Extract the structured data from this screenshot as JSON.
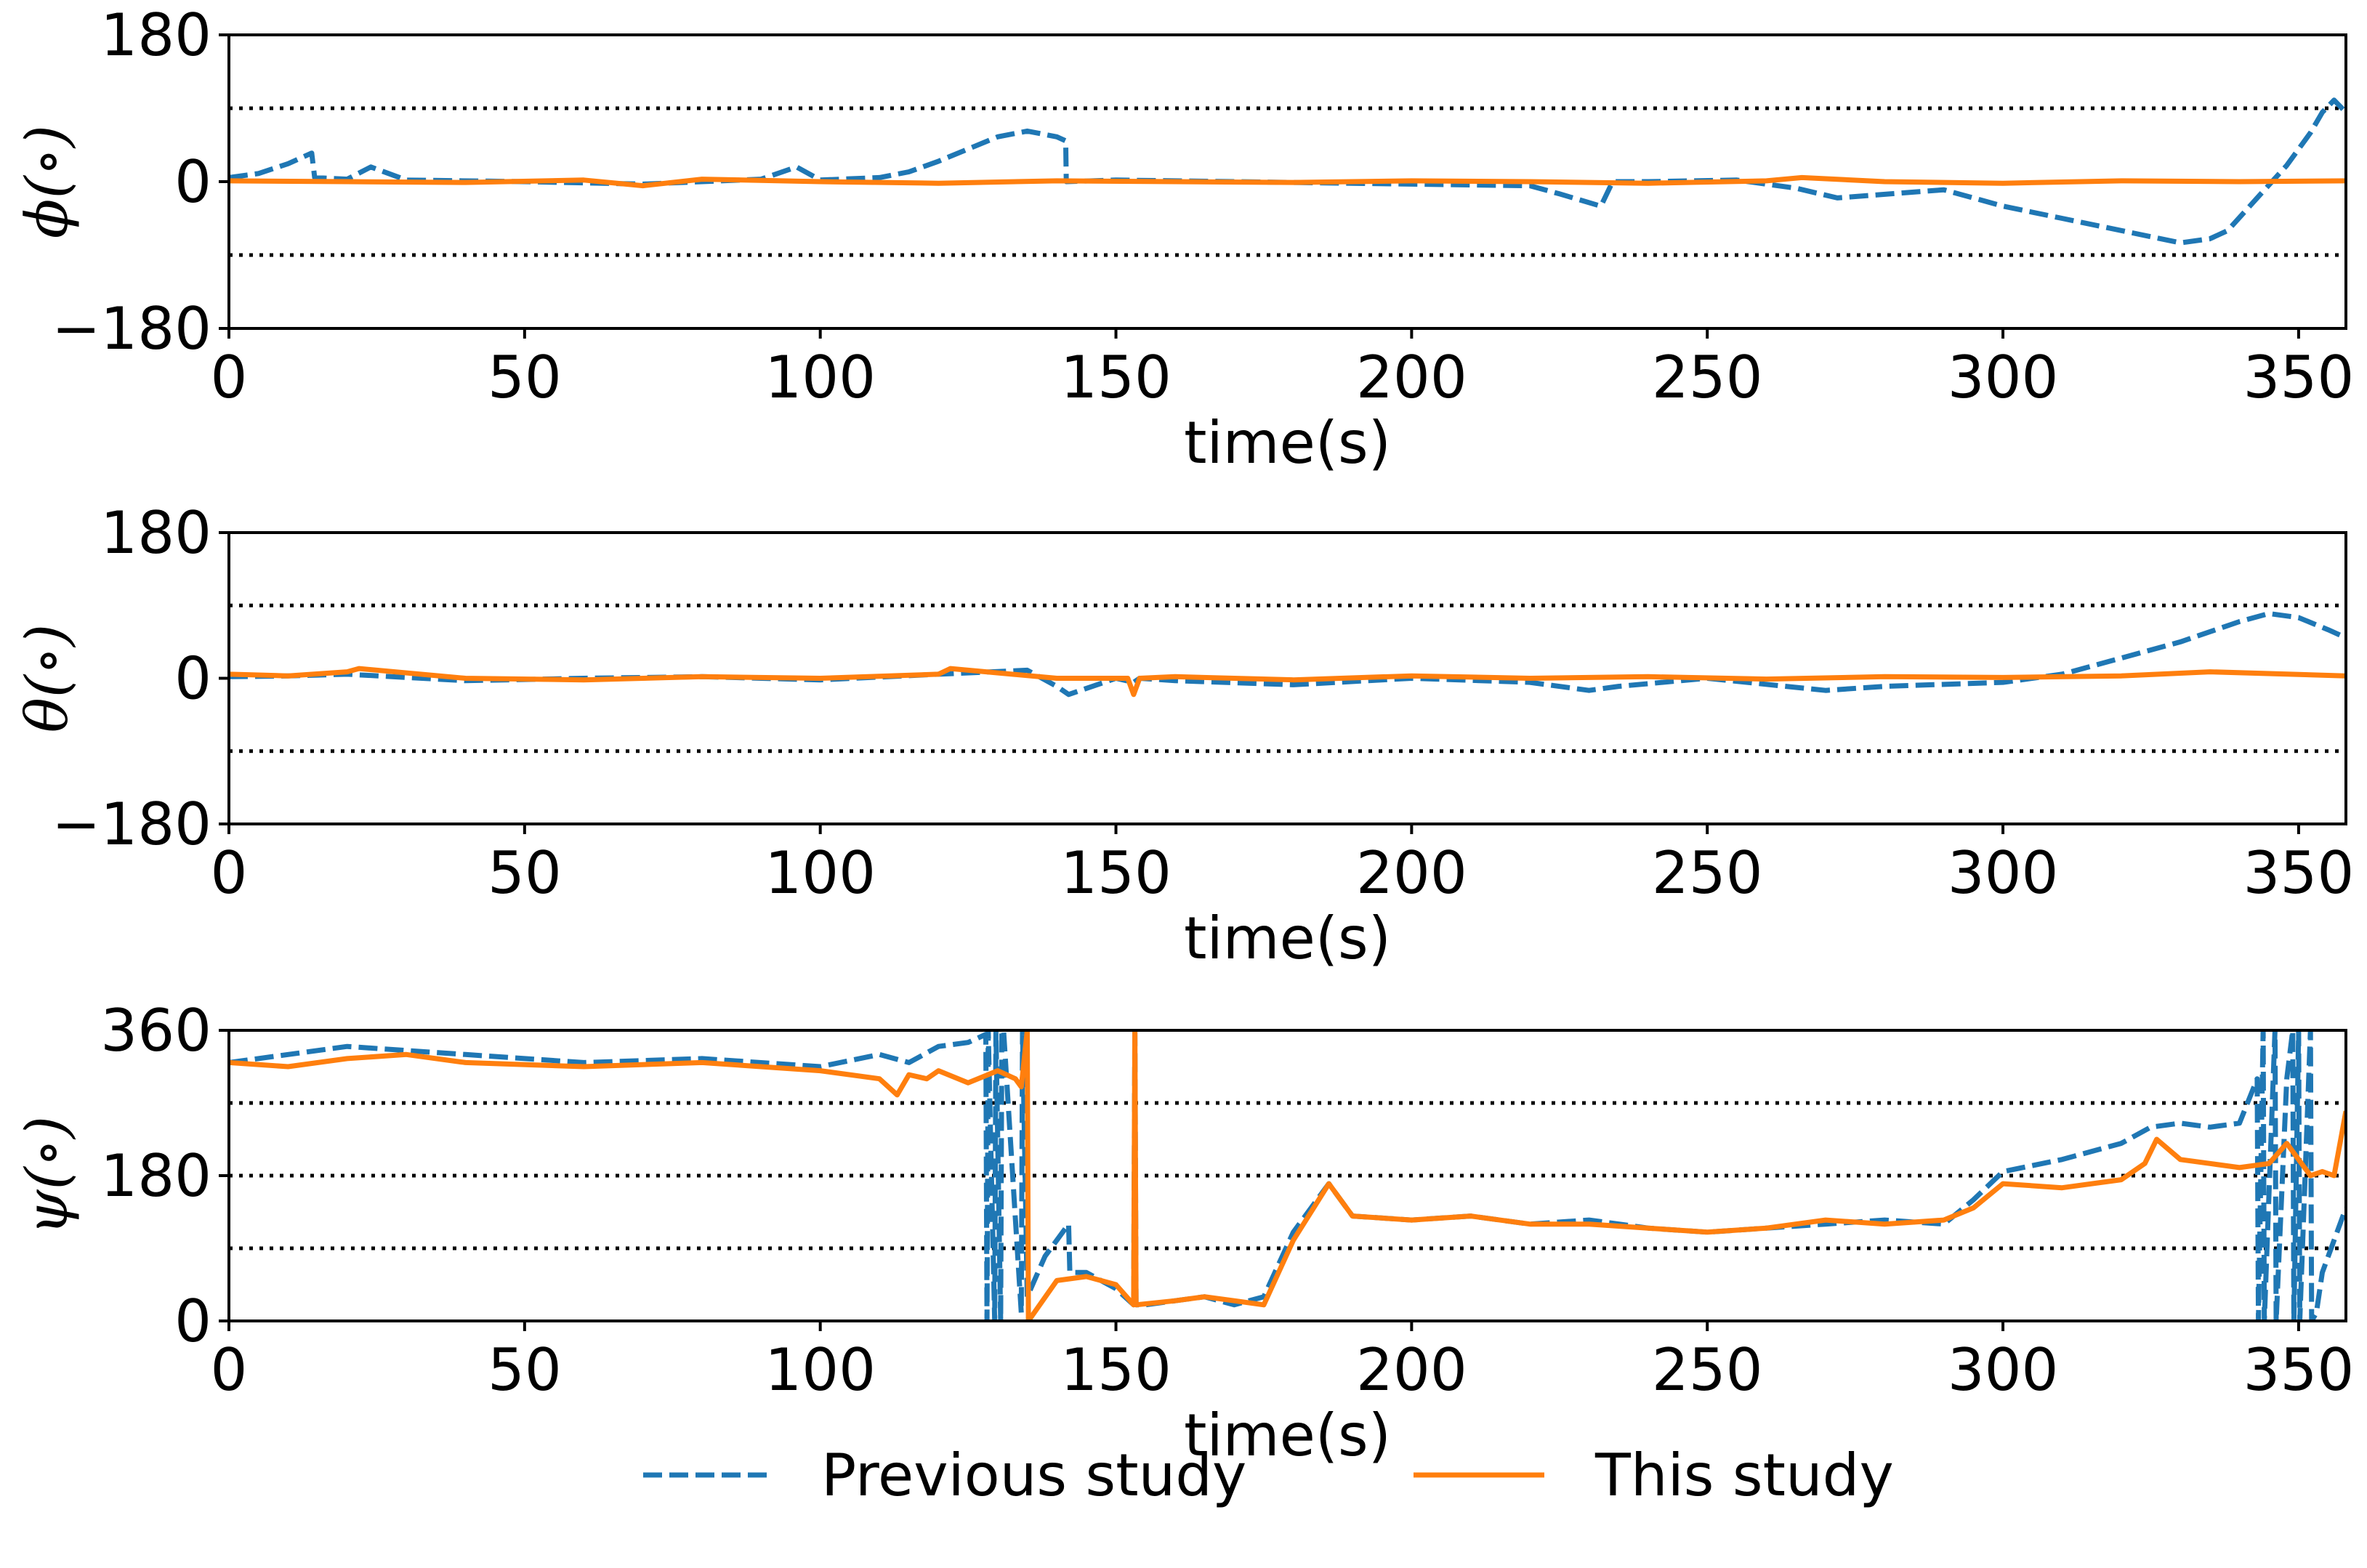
{
  "chart_data": {
    "type": "line",
    "legend": {
      "placement": "bottom-center",
      "entries": [
        {
          "name": "Previous study",
          "color": "#1f77b4",
          "style": "dashed"
        },
        {
          "name": "This study",
          "color": "#ff7f0e",
          "style": "solid"
        }
      ]
    },
    "panels": [
      {
        "id": "phi",
        "ylabel": "ϕ(∘)",
        "xlabel": "time(s)",
        "xlim": [
          0,
          358
        ],
        "ylim": [
          -180,
          180
        ],
        "xticks": [
          0,
          50,
          100,
          150,
          200,
          250,
          300,
          350
        ],
        "yticks": [
          -180,
          0,
          180
        ],
        "ytick_labels": [
          "−180",
          "0",
          "180"
        ],
        "reference_lines": [
          90,
          -90
        ],
        "series": [
          {
            "name": "Previous study",
            "x": [
              0,
              5,
              10,
              14,
              14.5,
              20,
              24,
              30,
              50,
              70,
              90,
              96,
              100,
              110,
              115,
              120,
              125,
              130,
              135,
              140,
              141.5,
              141.6,
              150,
              170,
              200,
              220,
              225,
              232,
              234,
              240,
              255,
              265,
              272,
              290,
              300,
              310,
              320,
              330,
              335,
              338,
              343,
              348,
              352,
              354,
              356,
              358
            ],
            "y": [
              5,
              10,
              22,
              35,
              5,
              3,
              18,
              2,
              0,
              -3,
              3,
              18,
              2,
              5,
              12,
              25,
              40,
              55,
              62,
              55,
              50,
              0,
              2,
              0,
              -3,
              -5,
              -15,
              -30,
              0,
              0,
              2,
              -8,
              -20,
              -10,
              -30,
              -45,
              -60,
              -75,
              -70,
              -60,
              -20,
              20,
              60,
              85,
              100,
              85
            ]
          },
          {
            "name": "This study",
            "x": [
              0,
              20,
              40,
              60,
              70,
              80,
              100,
              120,
              140,
              160,
              180,
              200,
              220,
              240,
              260,
              266,
              280,
              300,
              320,
              340,
              358
            ],
            "y": [
              1,
              0,
              -1,
              2,
              -5,
              3,
              0,
              -2,
              1,
              0,
              -1,
              1,
              0,
              -2,
              1,
              5,
              0,
              -2,
              1,
              0,
              1
            ]
          }
        ]
      },
      {
        "id": "theta",
        "ylabel": "θ(∘)",
        "xlabel": "time(s)",
        "xlim": [
          0,
          358
        ],
        "ylim": [
          -180,
          180
        ],
        "xticks": [
          0,
          50,
          100,
          150,
          200,
          250,
          300,
          350
        ],
        "yticks": [
          -180,
          0,
          180
        ],
        "ytick_labels": [
          "−180",
          "0",
          "180"
        ],
        "reference_lines": [
          90,
          -90
        ],
        "series": [
          {
            "name": "Previous study",
            "x": [
              0,
              10,
              20,
              40,
              60,
              80,
              100,
              120,
              135,
              140,
              142,
              150,
              153,
              154,
              160,
              180,
              200,
              220,
              230,
              235,
              250,
              270,
              280,
              300,
              310,
              320,
              330,
              340,
              345,
              350,
              355,
              358
            ],
            "y": [
              2,
              3,
              5,
              -3,
              0,
              2,
              -2,
              5,
              10,
              -10,
              -20,
              0,
              -5,
              0,
              -3,
              -8,
              0,
              -5,
              -15,
              -10,
              0,
              -15,
              -10,
              -5,
              5,
              25,
              45,
              70,
              80,
              75,
              60,
              50
            ],
            "style": "dashed"
          },
          {
            "name": "This study",
            "x": [
              0,
              10,
              20,
              22,
              40,
              60,
              80,
              100,
              120,
              122,
              140,
              152,
              153,
              154,
              160,
              180,
              200,
              220,
              240,
              260,
              280,
              300,
              320,
              335,
              358
            ],
            "y": [
              5,
              3,
              8,
              12,
              0,
              -2,
              2,
              0,
              5,
              12,
              0,
              0,
              -20,
              0,
              2,
              -2,
              3,
              0,
              2,
              -1,
              2,
              1,
              3,
              8,
              3
            ]
          }
        ]
      },
      {
        "id": "psi",
        "ylabel": "ψ(∘)",
        "xlabel": "time(s)",
        "xlim": [
          0,
          358
        ],
        "ylim": [
          0,
          360
        ],
        "xticks": [
          0,
          50,
          100,
          150,
          200,
          250,
          300,
          350
        ],
        "yticks": [
          0,
          180,
          360
        ],
        "ytick_labels": [
          "0",
          "180",
          "360"
        ],
        "reference_lines": [
          270,
          180,
          90
        ],
        "series": [
          {
            "name": "Previous study",
            "x": [
              0,
              10,
              20,
              30,
              40,
              60,
              80,
              100,
              110,
              115,
              120,
              125,
              128,
              128.2,
              128.4,
              129.5,
              129.7,
              130.5,
              130.7,
              131,
              134,
              134.2,
              135,
              138,
              142,
              142.2,
              145,
              150,
              153,
              153.2,
              153.4,
              155,
              160,
              165,
              170,
              175,
              180,
              186,
              190,
              200,
              210,
              220,
              230,
              240,
              250,
              260,
              270,
              280,
              290,
              295,
              300,
              310,
              320,
              325,
              330,
              335,
              340,
              343,
              343.2,
              344,
              344.2,
              346,
              346.2,
              348,
              349,
              349.2,
              350,
              350.2,
              352,
              352.2,
              353,
              354,
              356,
              358
            ],
            "y": [
              320,
              330,
              340,
              335,
              330,
              320,
              325,
              315,
              330,
              320,
              340,
              345,
              355,
              0,
              360,
              0,
              360,
              0,
              360,
              360,
              10,
              360,
              30,
              80,
              120,
              60,
              60,
              40,
              20,
              360,
              20,
              20,
              25,
              30,
              20,
              30,
              110,
              170,
              130,
              125,
              130,
              120,
              125,
              115,
              110,
              115,
              120,
              125,
              120,
              150,
              185,
              200,
              220,
              240,
              245,
              240,
              245,
              300,
              0,
              360,
              0,
              360,
              0,
              300,
              360,
              0,
              360,
              0,
              360,
              0,
              10,
              60,
              100,
              140
            ],
            "style": "dashed"
          },
          {
            "name": "This study",
            "x": [
              0,
              10,
              20,
              30,
              40,
              60,
              80,
              100,
              110,
              113,
              115,
              118,
              120,
              125,
              130,
              133,
              134,
              135,
              135.2,
              140,
              145,
              150,
              153,
              153.2,
              153.4,
              160,
              165,
              170,
              175,
              180,
              186,
              190,
              200,
              210,
              220,
              230,
              240,
              250,
              260,
              270,
              280,
              290,
              295,
              300,
              310,
              320,
              324,
              326,
              330,
              335,
              340,
              345,
              348,
              350,
              352,
              354,
              356,
              358
            ],
            "y": [
              320,
              315,
              325,
              330,
              320,
              315,
              320,
              310,
              300,
              280,
              305,
              300,
              310,
              295,
              310,
              300,
              290,
              360,
              0,
              50,
              55,
              45,
              20,
              360,
              20,
              25,
              30,
              25,
              20,
              100,
              170,
              130,
              125,
              130,
              120,
              120,
              115,
              110,
              115,
              125,
              120,
              125,
              140,
              170,
              165,
              175,
              195,
              225,
              200,
              195,
              190,
              195,
              220,
              200,
              180,
              185,
              180,
              260
            ]
          }
        ]
      }
    ]
  }
}
